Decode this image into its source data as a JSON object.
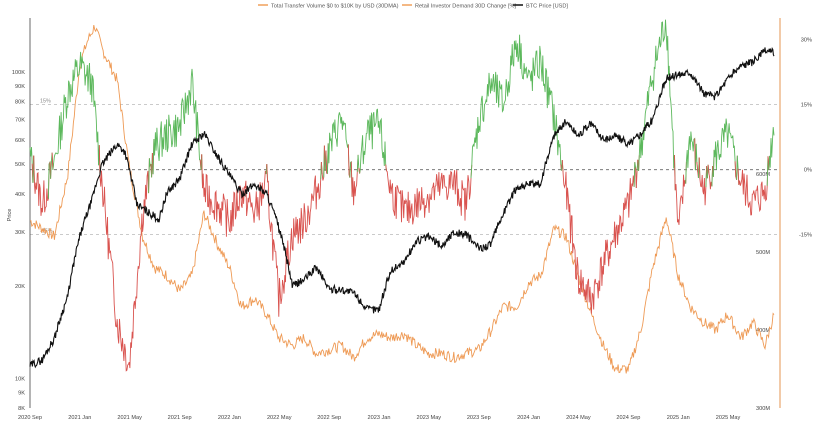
{
  "chart_data": {
    "type": "line",
    "title": "",
    "legend": [
      {
        "name": "Total Transfer Volume $0 to $10K by USD (30DMA)",
        "color": "#f0a15a"
      },
      {
        "name": "Retail Investor Demand 30D Change [%]",
        "color": "#f0a15a"
      },
      {
        "name": "BTC Price [USD]",
        "color": "#111111"
      }
    ],
    "colors": {
      "btc": "#111111",
      "volume": "#ee9a55",
      "demand_positive": "#5cb85c",
      "demand_negative": "#d9534f",
      "reference": "#888888"
    },
    "left_axis": {
      "label": "Price",
      "scale": "log",
      "range": [
        8000,
        150000
      ],
      "ticks": [
        {
          "value": 100000,
          "label": "100K"
        },
        {
          "value": 90000,
          "label": "90K"
        },
        {
          "value": 80000,
          "label": "80K"
        },
        {
          "value": 70000,
          "label": "70K"
        },
        {
          "value": 60000,
          "label": "60K"
        },
        {
          "value": 50000,
          "label": "50K"
        },
        {
          "value": 40000,
          "label": "40K"
        },
        {
          "value": 30000,
          "label": "30K"
        },
        {
          "value": 20000,
          "label": "20K"
        },
        {
          "value": 10000,
          "label": "10K"
        },
        {
          "value": 9000,
          "label": "9K"
        },
        {
          "value": 8000,
          "label": "8K"
        }
      ]
    },
    "right_axis_volume": {
      "range": [
        300,
        800
      ],
      "ticks": [
        {
          "value": 600,
          "label": "600M"
        },
        {
          "value": 500,
          "label": "500M"
        },
        {
          "value": 400,
          "label": "400M"
        },
        {
          "value": 300,
          "label": "300M"
        }
      ]
    },
    "right_axis_demand": {
      "unit": "%",
      "range": [
        -55,
        35
      ],
      "ticks": [
        {
          "value": 30,
          "label": "30%"
        },
        {
          "value": 15,
          "label": "15%"
        },
        {
          "value": 0,
          "label": "0%"
        },
        {
          "value": -15,
          "label": "-15%"
        }
      ]
    },
    "reference_lines": [
      {
        "value": 15,
        "label": "15%"
      },
      {
        "value": 0,
        "label": ""
      },
      {
        "value": -15,
        "label": "-15%"
      }
    ],
    "x_axis": {
      "start": 2020.667,
      "end": 2025.667,
      "ticks": [
        {
          "value": 2020.667,
          "label": "2020 Sep"
        },
        {
          "value": 2021.0,
          "label": "2021 Jan"
        },
        {
          "value": 2021.333,
          "label": "2021 May"
        },
        {
          "value": 2021.667,
          "label": "2021 Sep"
        },
        {
          "value": 2022.0,
          "label": "2022 Jan"
        },
        {
          "value": 2022.333,
          "label": "2022 May"
        },
        {
          "value": 2022.667,
          "label": "2022 Sep"
        },
        {
          "value": 2023.0,
          "label": "2023 Jan"
        },
        {
          "value": 2023.333,
          "label": "2023 May"
        },
        {
          "value": 2023.667,
          "label": "2023 Sep"
        },
        {
          "value": 2024.0,
          "label": "2024 Jan"
        },
        {
          "value": 2024.333,
          "label": "2024 May"
        },
        {
          "value": 2024.667,
          "label": "2024 Sep"
        },
        {
          "value": 2025.0,
          "label": "2025 Jan"
        },
        {
          "value": 2025.333,
          "label": "2025 May"
        }
      ]
    },
    "series": [
      {
        "name": "BTC Price [USD]",
        "axis": "left",
        "points": [
          [
            2020.667,
            11000
          ],
          [
            2020.75,
            11500
          ],
          [
            2020.83,
            13500
          ],
          [
            2020.92,
            18500
          ],
          [
            2021.0,
            29000
          ],
          [
            2021.08,
            38000
          ],
          [
            2021.15,
            50000
          ],
          [
            2021.25,
            58000
          ],
          [
            2021.3,
            55000
          ],
          [
            2021.38,
            37000
          ],
          [
            2021.45,
            35000
          ],
          [
            2021.53,
            33000
          ],
          [
            2021.58,
            40000
          ],
          [
            2021.67,
            45000
          ],
          [
            2021.75,
            58000
          ],
          [
            2021.83,
            63000
          ],
          [
            2021.9,
            55000
          ],
          [
            2022.0,
            46000
          ],
          [
            2022.08,
            40000
          ],
          [
            2022.17,
            43000
          ],
          [
            2022.25,
            40000
          ],
          [
            2022.33,
            31000
          ],
          [
            2022.42,
            20000
          ],
          [
            2022.5,
            21000
          ],
          [
            2022.58,
            23000
          ],
          [
            2022.67,
            19500
          ],
          [
            2022.75,
            19500
          ],
          [
            2022.83,
            19000
          ],
          [
            2022.92,
            16800
          ],
          [
            2023.0,
            16800
          ],
          [
            2023.08,
            22500
          ],
          [
            2023.17,
            24000
          ],
          [
            2023.25,
            28000
          ],
          [
            2023.33,
            29000
          ],
          [
            2023.42,
            27000
          ],
          [
            2023.5,
            30000
          ],
          [
            2023.58,
            29500
          ],
          [
            2023.67,
            26500
          ],
          [
            2023.75,
            27500
          ],
          [
            2023.83,
            34500
          ],
          [
            2023.92,
            42000
          ],
          [
            2024.0,
            43000
          ],
          [
            2024.08,
            43000
          ],
          [
            2024.17,
            62000
          ],
          [
            2024.25,
            69000
          ],
          [
            2024.33,
            62000
          ],
          [
            2024.42,
            68000
          ],
          [
            2024.5,
            60000
          ],
          [
            2024.58,
            62000
          ],
          [
            2024.67,
            58000
          ],
          [
            2024.75,
            63000
          ],
          [
            2024.83,
            70000
          ],
          [
            2024.92,
            95000
          ],
          [
            2025.0,
            98000
          ],
          [
            2025.08,
            100000
          ],
          [
            2025.17,
            85000
          ],
          [
            2025.25,
            83000
          ],
          [
            2025.33,
            95000
          ],
          [
            2025.42,
            105000
          ],
          [
            2025.5,
            108000
          ],
          [
            2025.58,
            117000
          ],
          [
            2025.64,
            116000
          ]
        ]
      },
      {
        "name": "Total Transfer Volume $0 to $10K by USD (30DMA)",
        "axis": "right_volume",
        "points": [
          [
            2020.667,
            540
          ],
          [
            2020.75,
            530
          ],
          [
            2020.83,
            520
          ],
          [
            2020.92,
            600
          ],
          [
            2021.0,
            740
          ],
          [
            2021.05,
            770
          ],
          [
            2021.1,
            790
          ],
          [
            2021.15,
            760
          ],
          [
            2021.25,
            720
          ],
          [
            2021.33,
            610
          ],
          [
            2021.42,
            520
          ],
          [
            2021.5,
            480
          ],
          [
            2021.58,
            470
          ],
          [
            2021.67,
            450
          ],
          [
            2021.75,
            470
          ],
          [
            2021.83,
            550
          ],
          [
            2021.92,
            510
          ],
          [
            2022.0,
            480
          ],
          [
            2022.08,
            430
          ],
          [
            2022.17,
            440
          ],
          [
            2022.25,
            420
          ],
          [
            2022.33,
            390
          ],
          [
            2022.42,
            380
          ],
          [
            2022.5,
            390
          ],
          [
            2022.58,
            370
          ],
          [
            2022.67,
            375
          ],
          [
            2022.75,
            380
          ],
          [
            2022.83,
            365
          ],
          [
            2022.92,
            390
          ],
          [
            2023.0,
            395
          ],
          [
            2023.08,
            390
          ],
          [
            2023.17,
            395
          ],
          [
            2023.25,
            380
          ],
          [
            2023.33,
            370
          ],
          [
            2023.42,
            370
          ],
          [
            2023.5,
            365
          ],
          [
            2023.58,
            370
          ],
          [
            2023.67,
            375
          ],
          [
            2023.75,
            400
          ],
          [
            2023.83,
            430
          ],
          [
            2023.92,
            430
          ],
          [
            2024.0,
            460
          ],
          [
            2024.08,
            470
          ],
          [
            2024.17,
            530
          ],
          [
            2024.25,
            520
          ],
          [
            2024.33,
            470
          ],
          [
            2024.42,
            420
          ],
          [
            2024.5,
            380
          ],
          [
            2024.58,
            350
          ],
          [
            2024.67,
            350
          ],
          [
            2024.75,
            400
          ],
          [
            2024.83,
            480
          ],
          [
            2024.92,
            545
          ],
          [
            2025.0,
            470
          ],
          [
            2025.08,
            430
          ],
          [
            2025.17,
            410
          ],
          [
            2025.25,
            400
          ],
          [
            2025.33,
            420
          ],
          [
            2025.42,
            390
          ],
          [
            2025.5,
            410
          ],
          [
            2025.58,
            380
          ],
          [
            2025.64,
            420
          ]
        ]
      },
      {
        "name": "Retail Investor Demand 30D Change [%]",
        "axis": "right_demand",
        "points": [
          [
            2020.667,
            3
          ],
          [
            2020.75,
            -8
          ],
          [
            2020.83,
            2
          ],
          [
            2020.92,
            18
          ],
          [
            2021.0,
            24
          ],
          [
            2021.08,
            20
          ],
          [
            2021.17,
            -10
          ],
          [
            2021.25,
            -35
          ],
          [
            2021.33,
            -45
          ],
          [
            2021.42,
            -10
          ],
          [
            2021.5,
            5
          ],
          [
            2021.58,
            8
          ],
          [
            2021.67,
            10
          ],
          [
            2021.75,
            20
          ],
          [
            2021.83,
            -5
          ],
          [
            2021.92,
            -8
          ],
          [
            2022.0,
            -12
          ],
          [
            2022.08,
            -5
          ],
          [
            2022.17,
            -10
          ],
          [
            2022.25,
            -3
          ],
          [
            2022.33,
            -30
          ],
          [
            2022.42,
            -15
          ],
          [
            2022.5,
            -12
          ],
          [
            2022.58,
            -5
          ],
          [
            2022.67,
            5
          ],
          [
            2022.75,
            12
          ],
          [
            2022.83,
            -5
          ],
          [
            2022.92,
            8
          ],
          [
            2023.0,
            10
          ],
          [
            2023.08,
            -5
          ],
          [
            2023.17,
            -10
          ],
          [
            2023.25,
            -8
          ],
          [
            2023.33,
            -6
          ],
          [
            2023.42,
            -4
          ],
          [
            2023.5,
            -3
          ],
          [
            2023.58,
            -8
          ],
          [
            2023.67,
            12
          ],
          [
            2023.75,
            20
          ],
          [
            2023.83,
            15
          ],
          [
            2023.92,
            30
          ],
          [
            2024.0,
            20
          ],
          [
            2024.08,
            25
          ],
          [
            2024.17,
            12
          ],
          [
            2024.25,
            -5
          ],
          [
            2024.33,
            -25
          ],
          [
            2024.42,
            -30
          ],
          [
            2024.5,
            -22
          ],
          [
            2024.58,
            -15
          ],
          [
            2024.67,
            -8
          ],
          [
            2024.75,
            5
          ],
          [
            2024.83,
            22
          ],
          [
            2024.92,
            35
          ],
          [
            2025.0,
            -15
          ],
          [
            2025.08,
            8
          ],
          [
            2025.17,
            -5
          ],
          [
            2025.25,
            3
          ],
          [
            2025.33,
            8
          ],
          [
            2025.42,
            -3
          ],
          [
            2025.5,
            -8
          ],
          [
            2025.58,
            -5
          ],
          [
            2025.64,
            10
          ]
        ]
      }
    ]
  }
}
